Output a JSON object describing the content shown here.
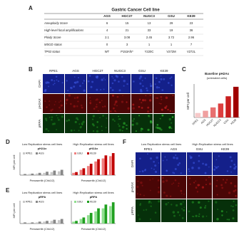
{
  "labels": {
    "a": "A",
    "b": "B",
    "c": "C",
    "d": "D",
    "e": "E",
    "f": "F"
  },
  "table": {
    "title": "Gastric Cancer Cell line",
    "header": [
      "AGS",
      "HGC27",
      "NUGC3",
      "GSU",
      "KE39"
    ],
    "rows": [
      [
        "Aneuploidy Score",
        "6",
        "15",
        "13",
        "29",
        "23"
      ],
      [
        "High-level focal amplifications",
        "4",
        "21",
        "33",
        "19",
        "36"
      ],
      [
        "Ploidy Score",
        "2.1",
        "3.08",
        "2.45",
        "3.72",
        "2.96"
      ],
      [
        "MSGD status",
        "0",
        "3",
        "1",
        "1",
        "7"
      ],
      [
        "TP53 status",
        "WT",
        "P153Afs*",
        "Y220C",
        "V272M",
        "V272L"
      ]
    ]
  },
  "panel_b": {
    "columns": [
      "RPE1",
      "AGS",
      "HGC27",
      "NUGC3",
      "GSU",
      "KE39"
    ],
    "rows": [
      "DAPI",
      "pH2AX",
      "pRPA"
    ]
  },
  "chart_c": {
    "type": "bar",
    "title": "Baseline pH2Ax",
    "subtitle": "(untreated cells)",
    "ylabel": "MFI per cell",
    "categories": [
      "RPE1",
      "AGS",
      "HGC27",
      "NUGC3",
      "GSU",
      "KE39"
    ],
    "values": [
      8,
      12,
      18,
      25,
      38,
      55
    ],
    "colors": [
      "#f6c9c9",
      "#f0a0a0",
      "#e87070",
      "#dd4040",
      "#c81e1e",
      "#a00000"
    ],
    "ylim": [
      0,
      60
    ]
  },
  "chart_d": {
    "type": "bar",
    "title": "pH2Ax",
    "ylabel": "MFI per cell",
    "xlabel": "Prexasertib (Chk1/2)",
    "ylim": [
      0,
      60
    ],
    "groups": [
      {
        "label": "Low Replication stress cell lines",
        "series": [
          {
            "name": "RPE1",
            "color": "#c8c8c8",
            "values": [
              2,
              3,
              4,
              6,
              8,
              10
            ]
          },
          {
            "name": "AGS",
            "color": "#888888",
            "values": [
              3,
              4,
              6,
              9,
              12,
              14
            ]
          }
        ]
      },
      {
        "label": "High Replication stress cell lines",
        "series": [
          {
            "name": "GSU",
            "color": "#f08080",
            "values": [
              6,
              14,
              24,
              36,
              44,
              50
            ]
          },
          {
            "name": "KE39",
            "color": "#c00000",
            "values": [
              8,
              18,
              30,
              42,
              52,
              58
            ]
          }
        ]
      }
    ]
  },
  "chart_e": {
    "type": "bar",
    "title": "pRPA",
    "ylabel": "MFI per cell",
    "xlabel": "Prexasertib (Chk1/2)",
    "ylim": [
      0,
      60
    ],
    "groups": [
      {
        "label": "Low Replication stress cell lines",
        "series": [
          {
            "name": "RPE1",
            "color": "#c8c8c8",
            "values": [
              2,
              2,
              3,
              5,
              7,
              9
            ]
          },
          {
            "name": "AGS",
            "color": "#888888",
            "values": [
              3,
              3,
              5,
              7,
              10,
              12
            ]
          }
        ]
      },
      {
        "label": "High Replication stress cell lines",
        "series": [
          {
            "name": "GSU",
            "color": "#90e090",
            "values": [
              5,
              12,
              22,
              32,
              40,
              46
            ]
          },
          {
            "name": "KE39",
            "color": "#20a020",
            "values": [
              7,
              16,
              28,
              40,
              50,
              56
            ]
          }
        ]
      }
    ]
  },
  "panel_f": {
    "groups": [
      "Low Replication stress cell lines",
      "High Replication stress cell lines"
    ],
    "columns": [
      "RPE1",
      "AGS",
      "GSU",
      "KE39"
    ],
    "rows": [
      "DAPI",
      "pH2AX",
      "pRPA"
    ]
  }
}
